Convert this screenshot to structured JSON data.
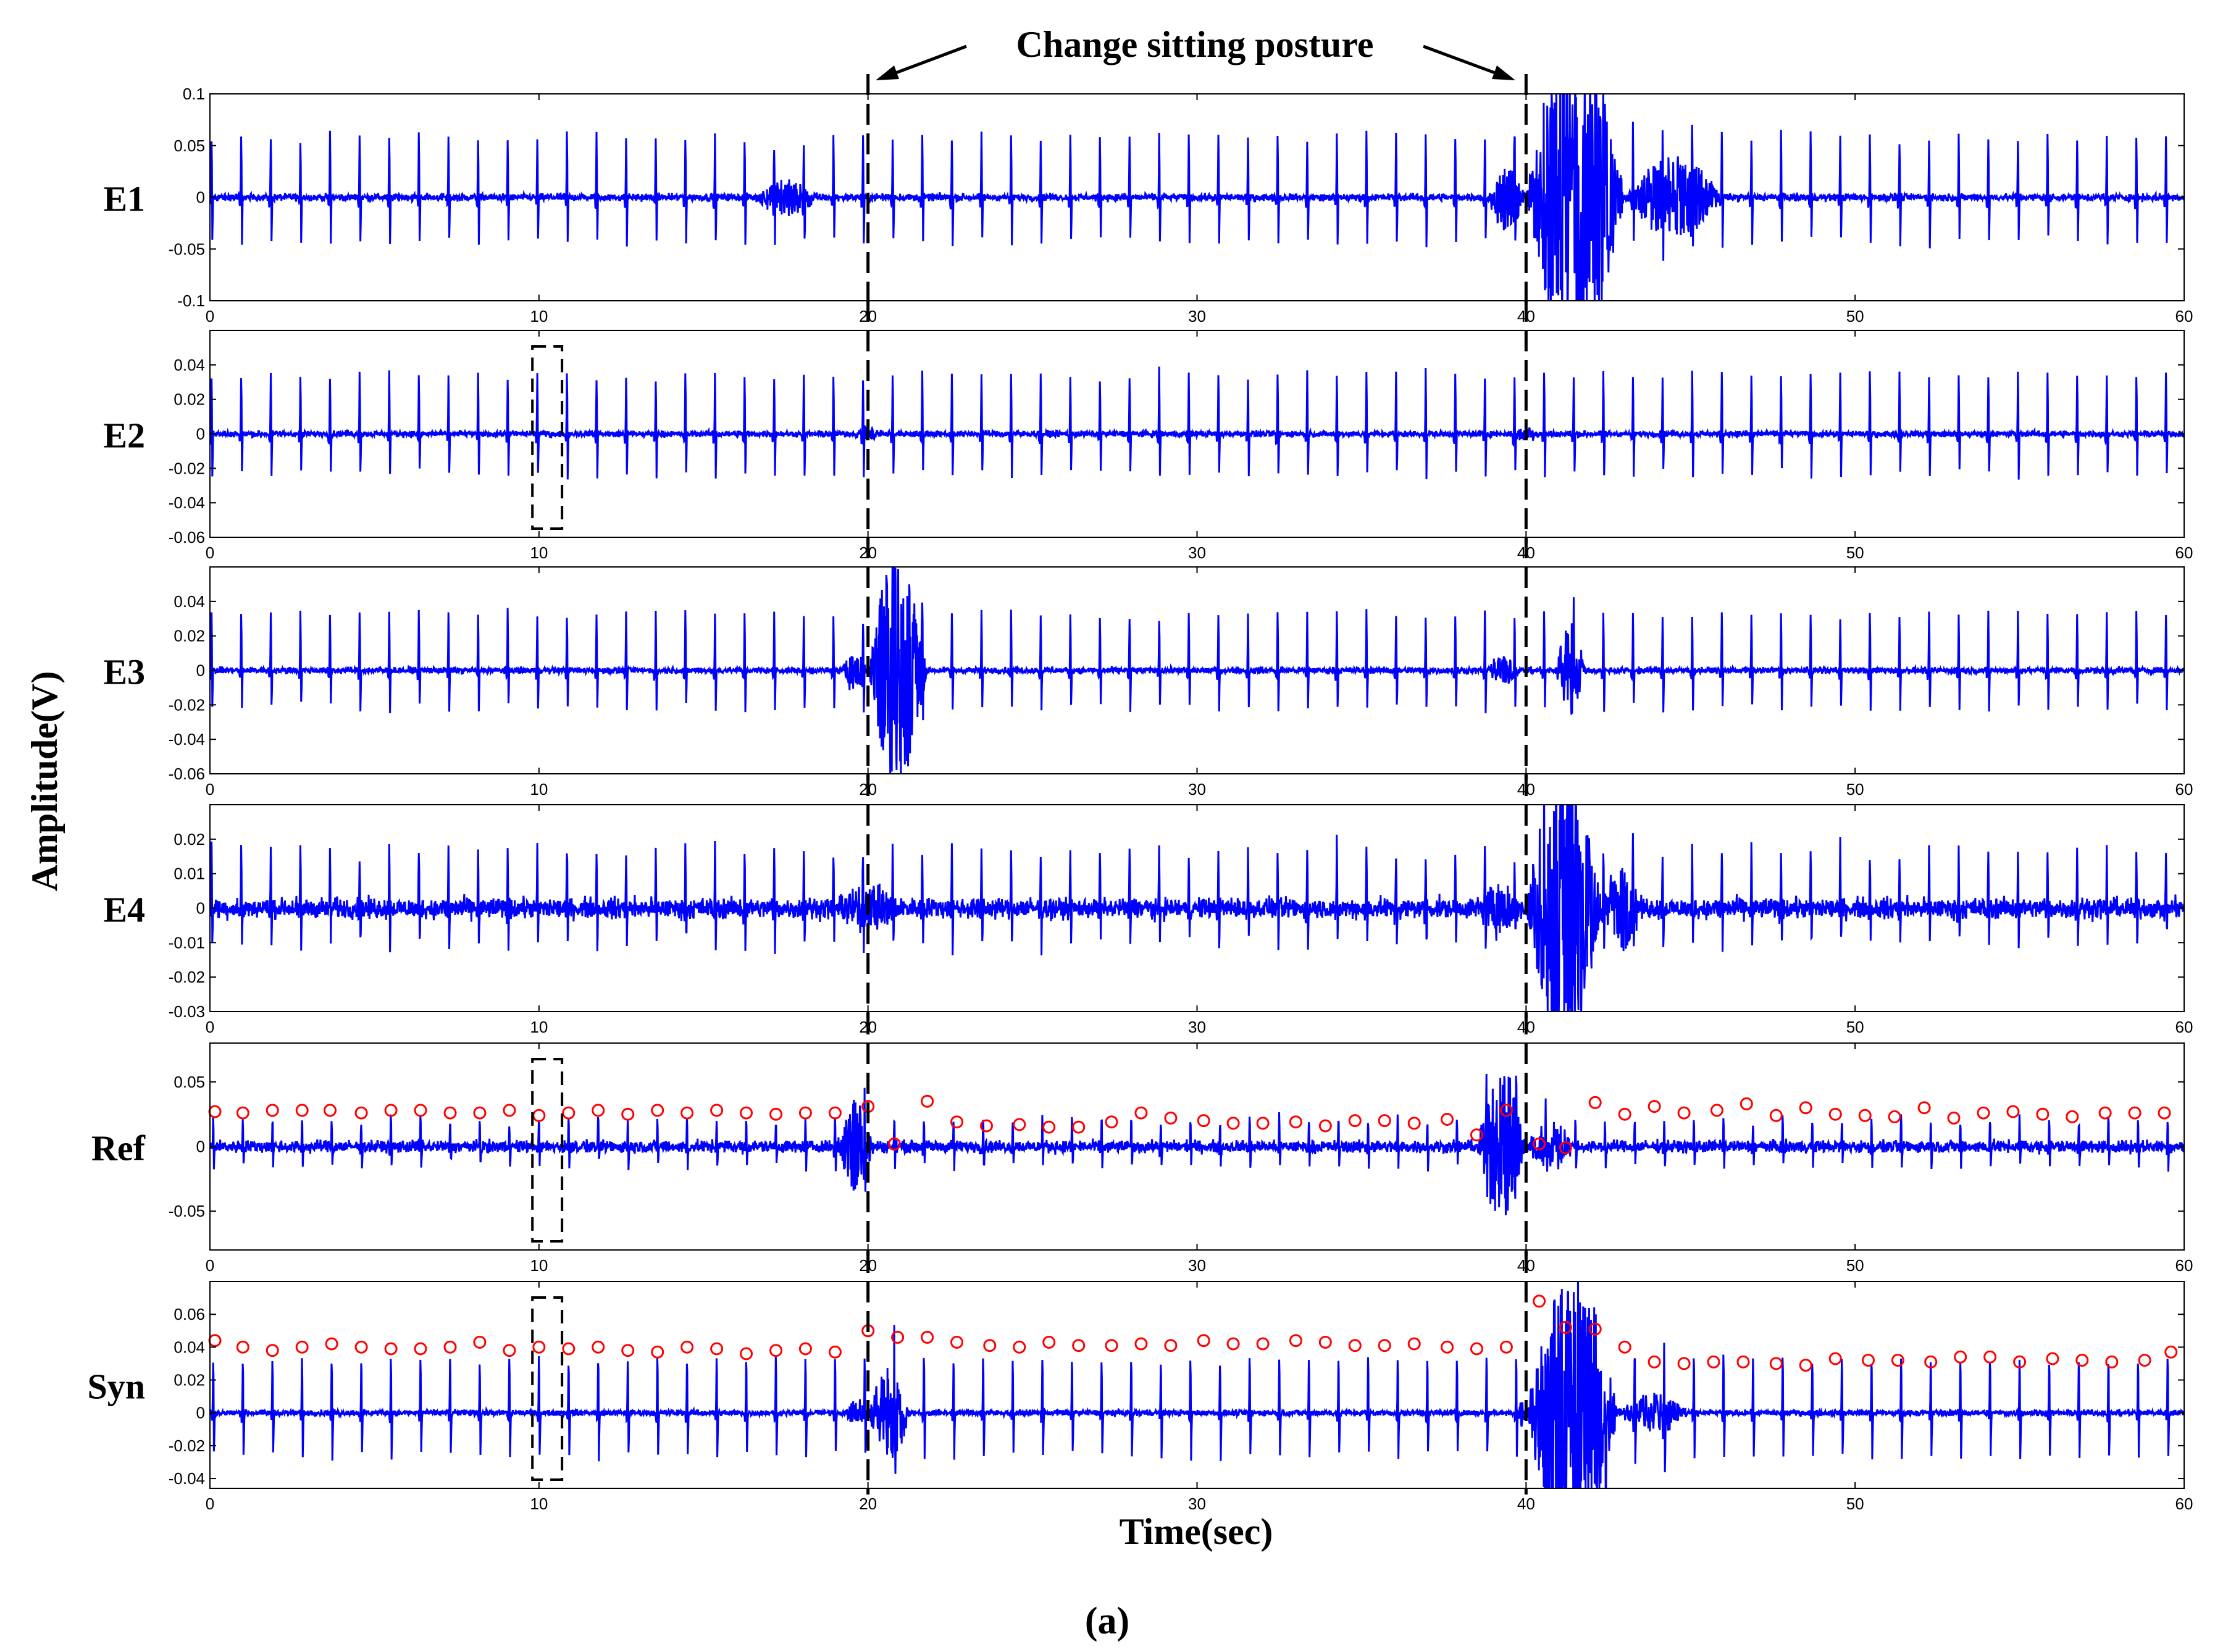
{
  "annotation": {
    "text": "Change sitting posture"
  },
  "xlabel": "Time(sec)",
  "ylabel": "Amplitude(V)",
  "caption": "(a)",
  "colors": {
    "signal": "#0000ff",
    "peak_marker": "#ff0000",
    "event_line": "#000000",
    "axes": "#000000"
  },
  "chart_data": [
    {
      "type": "line",
      "panel": "E1",
      "xlim": [
        0,
        60
      ],
      "xticks": [
        0,
        10,
        20,
        30,
        40,
        50,
        60
      ],
      "ylim": [
        -0.1,
        0.1
      ],
      "yticks": [
        -0.1,
        -0.05,
        0,
        0.05,
        0.1
      ],
      "ytick_labels": [
        "-0.1",
        "-0.05",
        "0",
        "0.05",
        "0.1"
      ],
      "beats": {
        "start": 0.05,
        "period": 0.9,
        "pos_peak": 0.065,
        "neg_peak": -0.05
      },
      "noise": 0.003,
      "events": [
        {
          "start": 16.5,
          "end": 18.5,
          "amp": 0.018
        },
        {
          "start": 38.8,
          "end": 40.0,
          "amp": 0.03
        },
        {
          "start": 40.0,
          "end": 43.0,
          "amp": 0.16
        },
        {
          "start": 43.0,
          "end": 46.0,
          "amp": 0.04
        }
      ],
      "event_lines": [
        20,
        40
      ],
      "dashed_box": null,
      "peaks": []
    },
    {
      "type": "line",
      "panel": "E2",
      "xlim": [
        0,
        60
      ],
      "xticks": [
        0,
        10,
        20,
        30,
        40,
        50,
        60
      ],
      "ylim": [
        -0.06,
        0.06
      ],
      "yticks": [
        -0.06,
        -0.04,
        -0.02,
        0,
        0.02,
        0.04
      ],
      "ytick_labels": [
        "-0.06",
        "-0.04",
        "-0.02",
        "0",
        "0.02",
        "0.04"
      ],
      "beats": {
        "start": 0.05,
        "period": 0.9,
        "pos_peak": 0.038,
        "neg_peak": -0.027
      },
      "noise": 0.0015,
      "events": [
        {
          "start": 19.5,
          "end": 20.5,
          "amp": 0.004
        },
        {
          "start": 39.5,
          "end": 40.5,
          "amp": 0.004
        }
      ],
      "event_lines": [
        20,
        40
      ],
      "dashed_box": [
        9.8,
        10.7
      ],
      "peaks": []
    },
    {
      "type": "line",
      "panel": "E3",
      "xlim": [
        0,
        60
      ],
      "xticks": [
        0,
        10,
        20,
        30,
        40,
        50,
        60
      ],
      "ylim": [
        -0.06,
        0.06
      ],
      "yticks": [
        -0.06,
        -0.04,
        -0.02,
        0,
        0.02,
        0.04
      ],
      "ytick_labels": [
        "-0.06",
        "-0.04",
        "-0.02",
        "0",
        "0.02",
        "0.04"
      ],
      "beats": {
        "start": 0.05,
        "period": 0.9,
        "pos_peak": 0.036,
        "neg_peak": -0.025
      },
      "noise": 0.0015,
      "events": [
        {
          "start": 19.2,
          "end": 20.0,
          "amp": 0.012
        },
        {
          "start": 20.0,
          "end": 21.8,
          "amp": 0.07
        },
        {
          "start": 38.8,
          "end": 39.8,
          "amp": 0.01
        },
        {
          "start": 40.9,
          "end": 41.8,
          "amp": 0.03
        }
      ],
      "event_lines": [
        20,
        40
      ],
      "dashed_box": null,
      "peaks": []
    },
    {
      "type": "line",
      "panel": "E4",
      "xlim": [
        0,
        60
      ],
      "xticks": [
        0,
        10,
        20,
        30,
        40,
        50,
        60
      ],
      "ylim": [
        -0.03,
        0.03
      ],
      "yticks": [
        -0.03,
        -0.02,
        -0.01,
        0,
        0.01,
        0.02
      ],
      "ytick_labels": [
        "-0.03",
        "-0.02",
        "-0.01",
        "0",
        "0.01",
        "0.02"
      ],
      "beats": {
        "start": 0.05,
        "period": 0.9,
        "pos_peak": 0.019,
        "neg_peak": -0.012
      },
      "noise": 0.0025,
      "events": [
        {
          "start": 19.0,
          "end": 21.0,
          "amp": 0.006
        },
        {
          "start": 38.5,
          "end": 40.0,
          "amp": 0.007
        },
        {
          "start": 40.0,
          "end": 42.3,
          "amp": 0.045
        },
        {
          "start": 42.3,
          "end": 43.5,
          "amp": 0.012
        }
      ],
      "event_lines": [
        20,
        40
      ],
      "dashed_box": null,
      "peaks": []
    },
    {
      "type": "line",
      "panel": "Ref",
      "xlim": [
        0,
        60
      ],
      "xticks": [
        0,
        10,
        20,
        30,
        40,
        50,
        60
      ],
      "ylim": [
        -0.08,
        0.08
      ],
      "yticks": [
        -0.05,
        0,
        0.05
      ],
      "ytick_labels": [
        "-0.05",
        "0",
        "0.05"
      ],
      "beats": {
        "start": 0.1,
        "period": 0.9,
        "pos_peak": 0.026,
        "neg_peak": -0.016
      },
      "noise": 0.004,
      "events": [
        {
          "start": 19.0,
          "end": 20.2,
          "amp": 0.035
        },
        {
          "start": 38.5,
          "end": 40.0,
          "amp": 0.06
        },
        {
          "start": 40.0,
          "end": 41.5,
          "amp": 0.02
        }
      ],
      "event_lines": [
        20,
        40
      ],
      "dashed_box": [
        9.8,
        10.7
      ],
      "peaks": [
        [
          0.15,
          0.027
        ],
        [
          1.0,
          0.026
        ],
        [
          1.9,
          0.028
        ],
        [
          2.8,
          0.028
        ],
        [
          3.65,
          0.028
        ],
        [
          4.6,
          0.026
        ],
        [
          5.5,
          0.028
        ],
        [
          6.4,
          0.028
        ],
        [
          7.3,
          0.026
        ],
        [
          8.2,
          0.026
        ],
        [
          9.1,
          0.028
        ],
        [
          10.0,
          0.024
        ],
        [
          10.9,
          0.026
        ],
        [
          11.8,
          0.028
        ],
        [
          12.7,
          0.025
        ],
        [
          13.6,
          0.028
        ],
        [
          14.5,
          0.026
        ],
        [
          15.4,
          0.028
        ],
        [
          16.3,
          0.026
        ],
        [
          17.2,
          0.025
        ],
        [
          18.1,
          0.026
        ],
        [
          19.0,
          0.026
        ],
        [
          20.0,
          0.031
        ],
        [
          20.8,
          0.002
        ],
        [
          21.8,
          0.035
        ],
        [
          22.7,
          0.019
        ],
        [
          23.6,
          0.016
        ],
        [
          24.6,
          0.017
        ],
        [
          25.5,
          0.015
        ],
        [
          26.4,
          0.015
        ],
        [
          27.4,
          0.019
        ],
        [
          28.3,
          0.026
        ],
        [
          29.2,
          0.022
        ],
        [
          30.2,
          0.02
        ],
        [
          31.1,
          0.018
        ],
        [
          32.0,
          0.018
        ],
        [
          33.0,
          0.019
        ],
        [
          33.9,
          0.016
        ],
        [
          34.8,
          0.02
        ],
        [
          35.7,
          0.02
        ],
        [
          36.6,
          0.018
        ],
        [
          37.6,
          0.021
        ],
        [
          38.5,
          0.009
        ],
        [
          39.4,
          0.028
        ],
        [
          40.4,
          0.002
        ],
        [
          41.2,
          -0.001
        ],
        [
          42.1,
          0.034
        ],
        [
          43.0,
          0.025
        ],
        [
          43.9,
          0.031
        ],
        [
          44.8,
          0.026
        ],
        [
          45.8,
          0.028
        ],
        [
          46.7,
          0.033
        ],
        [
          47.6,
          0.024
        ],
        [
          48.5,
          0.03
        ],
        [
          49.4,
          0.025
        ],
        [
          50.3,
          0.024
        ],
        [
          51.2,
          0.023
        ],
        [
          52.1,
          0.03
        ],
        [
          53.0,
          0.022
        ],
        [
          53.9,
          0.026
        ],
        [
          54.8,
          0.027
        ],
        [
          55.7,
          0.025
        ],
        [
          56.6,
          0.023
        ],
        [
          57.6,
          0.026
        ],
        [
          58.5,
          0.026
        ],
        [
          59.4,
          0.026
        ]
      ]
    },
    {
      "type": "line",
      "panel": "Syn",
      "xlim": [
        0,
        60
      ],
      "xticks": [
        0,
        10,
        20,
        30,
        40,
        50,
        60
      ],
      "ylim": [
        -0.046,
        0.08
      ],
      "yticks": [
        -0.04,
        -0.02,
        0,
        0.02,
        0.04,
        0.06
      ],
      "ytick_labels": [
        "-0.04",
        "-0.02",
        "0",
        "0.02",
        "0.04",
        "0.06"
      ],
      "beats": {
        "start": 0.1,
        "period": 0.9,
        "pos_peak": 0.04,
        "neg_peak": -0.028
      },
      "noise": 0.0015,
      "events": [
        {
          "start": 19.3,
          "end": 20.0,
          "amp": 0.008
        },
        {
          "start": 20.0,
          "end": 21.3,
          "amp": 0.03
        },
        {
          "start": 39.7,
          "end": 40.0,
          "amp": 0.01
        },
        {
          "start": 40.0,
          "end": 42.8,
          "amp": 0.09
        },
        {
          "start": 42.8,
          "end": 45.0,
          "amp": 0.012
        }
      ],
      "event_lines": [
        20,
        40
      ],
      "dashed_box": [
        9.8,
        10.7
      ],
      "peaks": [
        [
          0.15,
          0.044
        ],
        [
          1.0,
          0.04
        ],
        [
          1.9,
          0.038
        ],
        [
          2.8,
          0.04
        ],
        [
          3.7,
          0.042
        ],
        [
          4.6,
          0.04
        ],
        [
          5.5,
          0.039
        ],
        [
          6.4,
          0.039
        ],
        [
          7.3,
          0.04
        ],
        [
          8.2,
          0.043
        ],
        [
          9.1,
          0.038
        ],
        [
          10.0,
          0.04
        ],
        [
          10.9,
          0.039
        ],
        [
          11.8,
          0.04
        ],
        [
          12.7,
          0.038
        ],
        [
          13.6,
          0.037
        ],
        [
          14.5,
          0.04
        ],
        [
          15.4,
          0.039
        ],
        [
          16.3,
          0.036
        ],
        [
          17.2,
          0.038
        ],
        [
          18.1,
          0.039
        ],
        [
          19.0,
          0.037
        ],
        [
          20.0,
          0.05
        ],
        [
          20.9,
          0.046
        ],
        [
          21.8,
          0.046
        ],
        [
          22.7,
          0.043
        ],
        [
          23.7,
          0.041
        ],
        [
          24.6,
          0.04
        ],
        [
          25.5,
          0.043
        ],
        [
          26.4,
          0.041
        ],
        [
          27.4,
          0.041
        ],
        [
          28.3,
          0.042
        ],
        [
          29.2,
          0.041
        ],
        [
          30.2,
          0.044
        ],
        [
          31.1,
          0.042
        ],
        [
          32.0,
          0.042
        ],
        [
          33.0,
          0.044
        ],
        [
          33.9,
          0.043
        ],
        [
          34.8,
          0.041
        ],
        [
          35.7,
          0.041
        ],
        [
          36.6,
          0.042
        ],
        [
          37.6,
          0.04
        ],
        [
          38.5,
          0.039
        ],
        [
          39.4,
          0.04
        ],
        [
          40.4,
          0.068
        ],
        [
          41.2,
          0.052
        ],
        [
          42.1,
          0.051
        ],
        [
          43.0,
          0.04
        ],
        [
          43.9,
          0.031
        ],
        [
          44.8,
          0.03
        ],
        [
          45.7,
          0.031
        ],
        [
          46.6,
          0.031
        ],
        [
          47.6,
          0.03
        ],
        [
          48.5,
          0.029
        ],
        [
          49.4,
          0.033
        ],
        [
          50.4,
          0.032
        ],
        [
          51.3,
          0.032
        ],
        [
          52.3,
          0.031
        ],
        [
          53.2,
          0.034
        ],
        [
          54.1,
          0.034
        ],
        [
          55.0,
          0.031
        ],
        [
          56.0,
          0.033
        ],
        [
          56.9,
          0.032
        ],
        [
          57.8,
          0.031
        ],
        [
          58.8,
          0.032
        ],
        [
          59.6,
          0.037
        ]
      ]
    }
  ]
}
